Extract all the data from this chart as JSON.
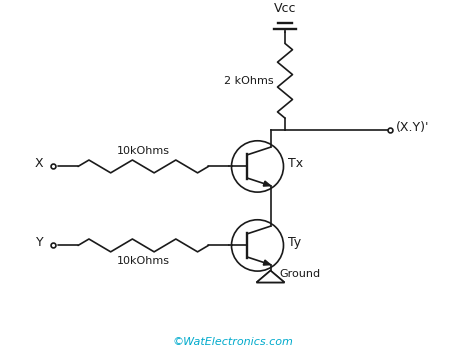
{
  "bg_color": "#ffffff",
  "line_color": "#1a1a1a",
  "text_color": "#1a1a1a",
  "cyan_color": "#00aacc",
  "vcc_label": "Vcc",
  "r1_label": "2 kOhms",
  "rx_label": "10kOhms",
  "ry_label": "10kOhms",
  "tx_label": "Tx",
  "ty_label": "Ty",
  "x_label": "X",
  "y_label": "Y",
  "output_label": "(X.Y)'",
  "ground_label": "Ground",
  "watermark": "©WatElectronics.com",
  "fig_width": 4.66,
  "fig_height": 3.56,
  "xlim": [
    0,
    9.32
  ],
  "ylim": [
    0,
    7.12
  ]
}
